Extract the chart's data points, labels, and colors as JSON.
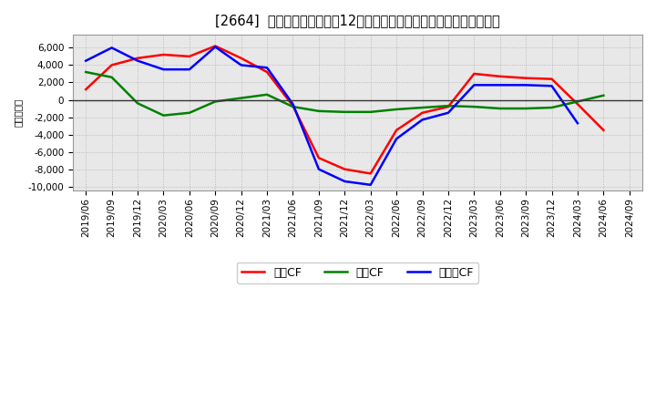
{
  "title": "[2664]  キャッシュフローの12か月移動合計の対前年同期増減額の推移",
  "ylabel": "（百万円）",
  "background_color": "#ffffff",
  "plot_bg_color": "#e8e8e8",
  "ylim": [
    -10500,
    7500
  ],
  "yticks": [
    -10000,
    -8000,
    -6000,
    -4000,
    -2000,
    0,
    2000,
    4000,
    6000
  ],
  "x_labels": [
    "2019/06",
    "2019/09",
    "2019/12",
    "2020/03",
    "2020/06",
    "2020/09",
    "2020/12",
    "2021/03",
    "2021/06",
    "2021/09",
    "2021/12",
    "2022/03",
    "2022/06",
    "2022/09",
    "2022/12",
    "2023/03",
    "2023/06",
    "2023/09",
    "2023/12",
    "2024/03",
    "2024/06",
    "2024/09"
  ],
  "operating_cf": [
    1200,
    4000,
    4800,
    5200,
    5000,
    6200,
    4800,
    3200,
    -700,
    -6700,
    -8000,
    -8500,
    -3500,
    -1500,
    -800,
    3000,
    2700,
    2500,
    2400,
    -500,
    -3500,
    null
  ],
  "investing_cf": [
    3200,
    2600,
    -400,
    -1800,
    -1500,
    -200,
    200,
    600,
    -800,
    -1300,
    -1400,
    -1400,
    -1100,
    -900,
    -700,
    -800,
    -1000,
    -1000,
    -900,
    -200,
    500,
    null
  ],
  "free_cf": [
    4500,
    6000,
    4500,
    3500,
    3500,
    6100,
    4000,
    3700,
    -500,
    -8000,
    -9400,
    -9800,
    -4500,
    -2300,
    -1500,
    1700,
    1700,
    1700,
    1600,
    -2700,
    null,
    null
  ],
  "line_colors": {
    "operating": "#ff0000",
    "investing": "#008000",
    "free": "#0000ff"
  },
  "line_width": 1.8,
  "title_fontsize": 10.5,
  "axis_fontsize": 7.5,
  "legend_fontsize": 9
}
